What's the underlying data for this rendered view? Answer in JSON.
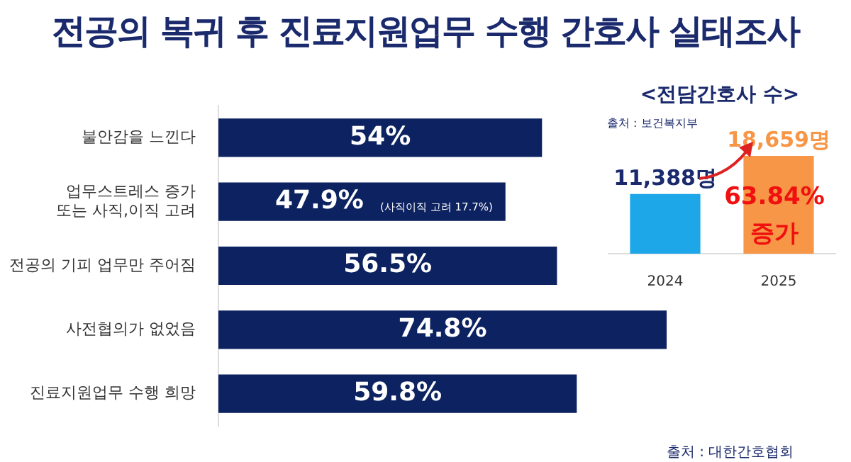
{
  "chart_data": [
    {
      "type": "bar",
      "orientation": "horizontal",
      "title": "전공의 복귀 후 진료지원업무 수행 간호사 실태조사",
      "categories": [
        "불안감을 느낀다",
        "업무스트레스 증가 또는 사직,이직 고려",
        "전공의 기피 업무만 주어짐",
        "사전협의가 없었음",
        "진료지원업무 수행 희망"
      ],
      "values": [
        54,
        47.9,
        56.5,
        74.8,
        59.8
      ],
      "color": "#0d2260",
      "value_labels": [
        "54%",
        "47.9%",
        "56.5%",
        "74.8%",
        "59.8%"
      ],
      "tick_labels": "y",
      "grid": false,
      "legend": false,
      "annotations": [
        "(사직이직 고려 17.7%)",
        "출처 : 대한간호협회"
      ]
    },
    {
      "type": "bar",
      "title": "<전담간호사 수>",
      "categories": [
        "2024",
        "2025"
      ],
      "values": [
        11388,
        18659
      ],
      "colors": [
        "#1ea7e8",
        "#f79646"
      ],
      "value_labels": [
        "11,388명",
        "18,659명"
      ],
      "tick_labels": "x",
      "grid": false,
      "legend": false,
      "annotations": [
        "출처 : 보건복지부",
        "63.84% 증가"
      ]
    }
  ]
}
